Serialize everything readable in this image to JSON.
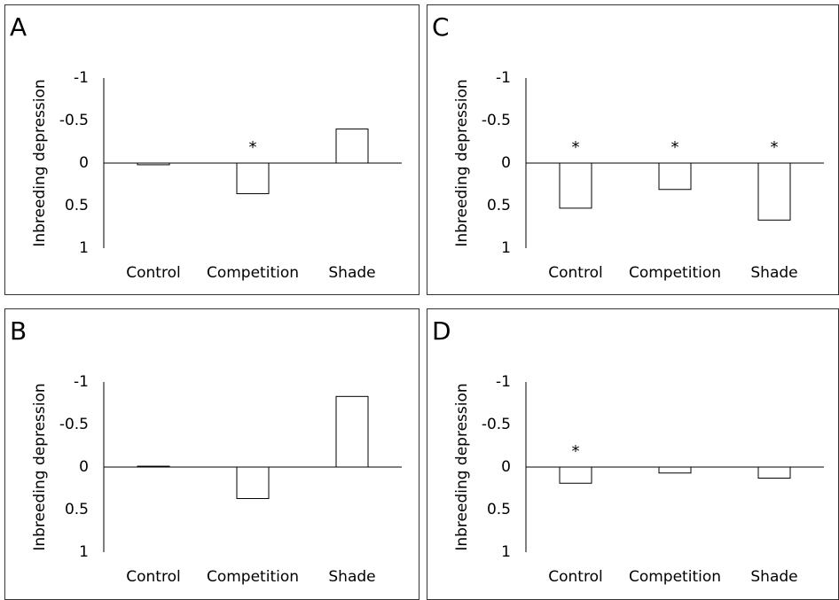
{
  "chart_data": [
    {
      "type": "bar",
      "label": "A",
      "ylabel": "Inbreeding depression",
      "categories": [
        "Control",
        "Competition",
        "Shade"
      ],
      "values": [
        0.02,
        0.36,
        -0.4
      ],
      "ylim": [
        -1,
        1
      ],
      "yticks": [
        -1,
        -0.5,
        0,
        0.5,
        1
      ],
      "inverted": true,
      "color": "#ffffff",
      "annotations": [
        {
          "category": "Competition",
          "text": "*"
        }
      ]
    },
    {
      "type": "bar",
      "label": "B",
      "ylabel": "Inbreeding depression",
      "categories": [
        "Control",
        "Competition",
        "Shade"
      ],
      "values": [
        -0.01,
        0.37,
        -0.83
      ],
      "ylim": [
        -1,
        1
      ],
      "yticks": [
        -1,
        -0.5,
        0,
        0.5,
        1
      ],
      "inverted": true,
      "color": "#ffffff",
      "annotations": []
    },
    {
      "type": "bar",
      "label": "C",
      "ylabel": "Inbreeding depression",
      "categories": [
        "Control",
        "Competition",
        "Shade"
      ],
      "values": [
        0.53,
        0.31,
        0.67
      ],
      "ylim": [
        -1,
        1
      ],
      "yticks": [
        -1,
        -0.5,
        0,
        0.5,
        1
      ],
      "inverted": true,
      "color": "#ffffff",
      "annotations": [
        {
          "category": "Control",
          "text": "*"
        },
        {
          "category": "Competition",
          "text": "*"
        },
        {
          "category": "Shade",
          "text": "*"
        }
      ]
    },
    {
      "type": "bar",
      "label": "D",
      "ylabel": "Inbreeding depression",
      "categories": [
        "Control",
        "Competition",
        "Shade"
      ],
      "values": [
        0.19,
        0.07,
        0.13
      ],
      "ylim": [
        -1,
        1
      ],
      "yticks": [
        -1,
        -0.5,
        0,
        0.5,
        1
      ],
      "inverted": true,
      "color": "#ffffff",
      "annotations": [
        {
          "category": "Control",
          "text": "*"
        }
      ]
    }
  ]
}
